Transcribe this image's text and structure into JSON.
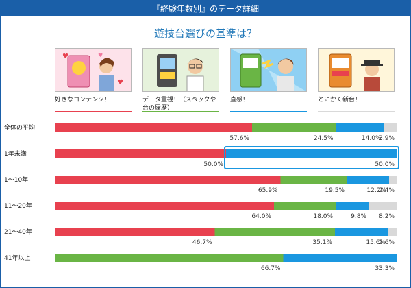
{
  "header": {
    "title": "『経験年数別』のデータ詳細"
  },
  "question": "遊技台選びの基準は？",
  "options": [
    {
      "label": "好きなコンテンツ！",
      "icon": "illustration-girl-machine-hearts",
      "color": "#e8414f"
    },
    {
      "label": "データ重視！（スペックや台の履歴）",
      "icon": "illustration-glasses-man-machine",
      "color": "#6ab545"
    },
    {
      "label": "直感！",
      "icon": "illustration-man-machine-flash",
      "color": "#1a97e0"
    },
    {
      "label": "とにかく新台！",
      "icon": "illustration-man-hat-machine",
      "color": "#d9d9d9"
    }
  ],
  "colors": {
    "header": "#1a5fa8",
    "title": "#1f77b8",
    "highlight": "#1a97e0",
    "bar_label": "#333333"
  },
  "chart_data": {
    "type": "bar",
    "orientation": "horizontal",
    "stacked": true,
    "normalized": true,
    "categories": [
      "全体の平均",
      "1年未満",
      "1〜10年",
      "11〜20年",
      "21〜40年",
      "41年以上"
    ],
    "series": [
      {
        "name": "好きなコンテンツ！",
        "color": "#e8414f",
        "values": [
          57.6,
          50.0,
          65.9,
          64.0,
          46.7,
          0
        ]
      },
      {
        "name": "データ重視！（スペックや台の履歴）",
        "color": "#6ab545",
        "values": [
          24.5,
          0,
          19.5,
          18.0,
          35.1,
          66.7
        ]
      },
      {
        "name": "直感！",
        "color": "#1a97e0",
        "values": [
          14.0,
          50.0,
          12.2,
          9.8,
          15.6,
          33.3
        ]
      },
      {
        "name": "とにかく新台！",
        "color": "#d9d9d9",
        "values": [
          3.9,
          0,
          2.4,
          8.2,
          2.6,
          0
        ]
      }
    ],
    "value_suffix": "%",
    "highlight": {
      "category": "1年未満",
      "series": "直感！"
    },
    "legend": "top"
  }
}
